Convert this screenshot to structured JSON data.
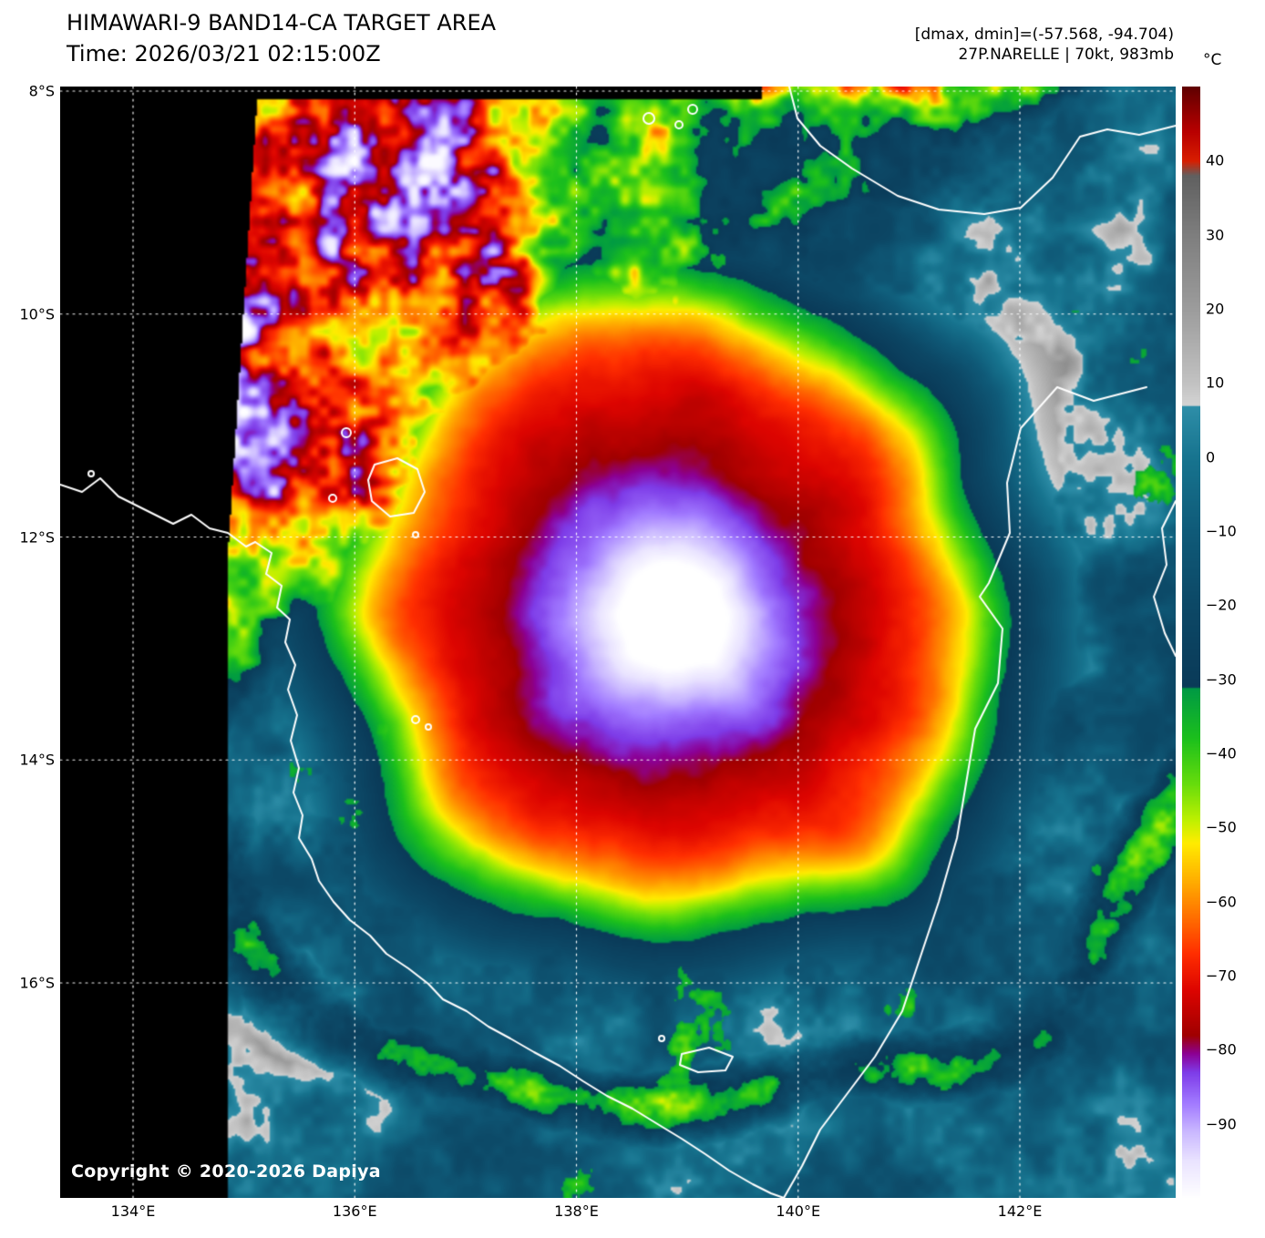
{
  "header": {
    "title": "HIMAWARI-9 BAND14-CA TARGET AREA",
    "time": "Time: 2026/03/21 02:15:00Z",
    "dmax_dmin": "[dmax, dmin]=(-57.568, -94.704)",
    "storm": "27P.NARELLE | 70kt, 983mb"
  },
  "colorbar": {
    "unit": "°C",
    "ticks": [
      {
        "label": "40",
        "value": 40
      },
      {
        "label": "30",
        "value": 30
      },
      {
        "label": "20",
        "value": 20
      },
      {
        "label": "10",
        "value": 10
      },
      {
        "label": "0",
        "value": 0
      },
      {
        "label": "−10",
        "value": -10
      },
      {
        "label": "−20",
        "value": -20
      },
      {
        "label": "−30",
        "value": -30
      },
      {
        "label": "−40",
        "value": -40
      },
      {
        "label": "−50",
        "value": -50
      },
      {
        "label": "−60",
        "value": -60
      },
      {
        "label": "−70",
        "value": -70
      },
      {
        "label": "−80",
        "value": -80
      },
      {
        "label": "−90",
        "value": -90
      }
    ]
  },
  "axes": {
    "lat": [
      {
        "label": "8°S",
        "deg": 8
      },
      {
        "label": "10°S",
        "deg": 10
      },
      {
        "label": "12°S",
        "deg": 12
      },
      {
        "label": "14°S",
        "deg": 14
      },
      {
        "label": "16°S",
        "deg": 16
      }
    ],
    "lon": [
      {
        "label": "134°E",
        "deg": 134
      },
      {
        "label": "136°E",
        "deg": 136
      },
      {
        "label": "138°E",
        "deg": 138
      },
      {
        "label": "140°E",
        "deg": 140
      },
      {
        "label": "142°E",
        "deg": 142
      }
    ]
  },
  "footer": {
    "copyright": "Copyright © 2020-2026 Dapiya"
  }
}
